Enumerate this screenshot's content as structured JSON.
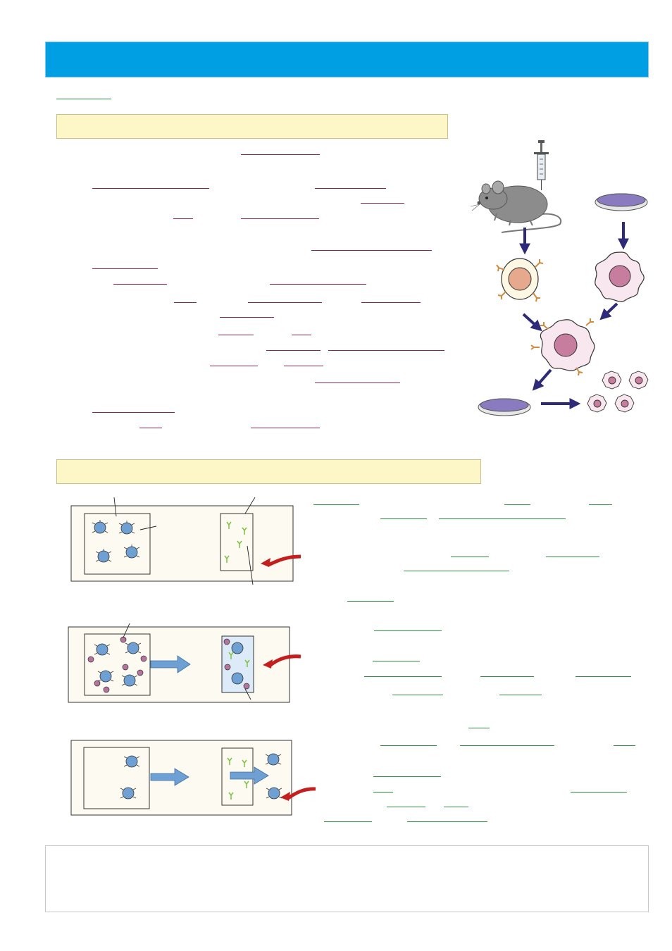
{
  "header": {
    "title": ""
  },
  "sections": [
    {
      "id": "producing",
      "title": ""
    },
    {
      "id": "elisa",
      "title": ""
    }
  ],
  "colors": {
    "header_bar": "#009fe3",
    "banner": "#fdf6c7",
    "blank_red": "#8c2647",
    "blank_green": "#2e8a3c",
    "b_cell": "#e7a98e",
    "tumour_cell": "#c77d9e",
    "antibody_orange": "#d28a3b",
    "antibody_green": "#7cc243",
    "cell_blue": "#6ea0d3",
    "antigen": "#b5749b",
    "arrow_navy": "#2e2a7a",
    "arrow_red": "#c41e1e"
  },
  "icons": [
    "syringe-icon",
    "mouse-icon",
    "petri-dish-icon",
    "b-cell-icon",
    "tumour-cell-icon",
    "hybridoma-icon",
    "antibody-icon"
  ],
  "footer": {
    "text": ""
  }
}
